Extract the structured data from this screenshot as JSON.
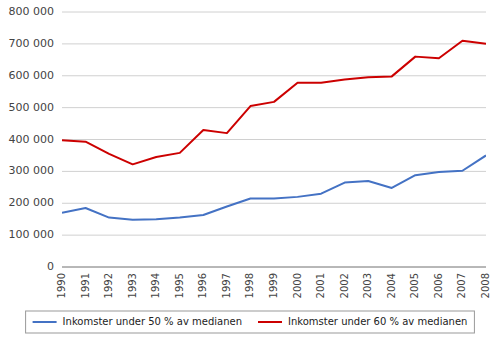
{
  "chart_data": {
    "type": "line",
    "x": [
      1990,
      1991,
      1992,
      1993,
      1994,
      1995,
      1996,
      1997,
      1998,
      1999,
      2000,
      2001,
      2002,
      2003,
      2004,
      2005,
      2006,
      2007,
      2008
    ],
    "series": [
      {
        "name": "Inkomster under 50 % av medianen",
        "color": "#4472C4",
        "values": [
          170000,
          185000,
          155000,
          148000,
          150000,
          155000,
          163000,
          190000,
          215000,
          215000,
          220000,
          230000,
          265000,
          270000,
          248000,
          288000,
          298000,
          302000,
          350000
        ]
      },
      {
        "name": "Inkomster under 60 % av medianen",
        "color": "#CC0000",
        "values": [
          398000,
          393000,
          355000,
          322000,
          345000,
          358000,
          430000,
          420000,
          505000,
          518000,
          578000,
          578000,
          588000,
          595000,
          598000,
          660000,
          655000,
          710000,
          700000
        ]
      }
    ],
    "xlim": [
      1990,
      2008
    ],
    "xticks": [
      1990,
      1991,
      1992,
      1993,
      1994,
      1995,
      1996,
      1997,
      1998,
      1999,
      2000,
      2001,
      2002,
      2003,
      2004,
      2005,
      2006,
      2007,
      2008
    ],
    "ylim": [
      0,
      800000
    ],
    "yticks": [
      0,
      {
        "value": 100000,
        "label": "100 000"
      },
      {
        "value": 200000,
        "label": "200 000"
      },
      {
        "value": 300000,
        "label": "300 000"
      },
      {
        "value": 400000,
        "label": "400 000"
      },
      {
        "value": 500000,
        "label": "500 000"
      },
      {
        "value": 600000,
        "label": "600 000"
      },
      {
        "value": 700000,
        "label": "700 000"
      },
      {
        "value": 800000,
        "label": "800 000"
      }
    ],
    "grid": true,
    "legend": "bottom"
  }
}
